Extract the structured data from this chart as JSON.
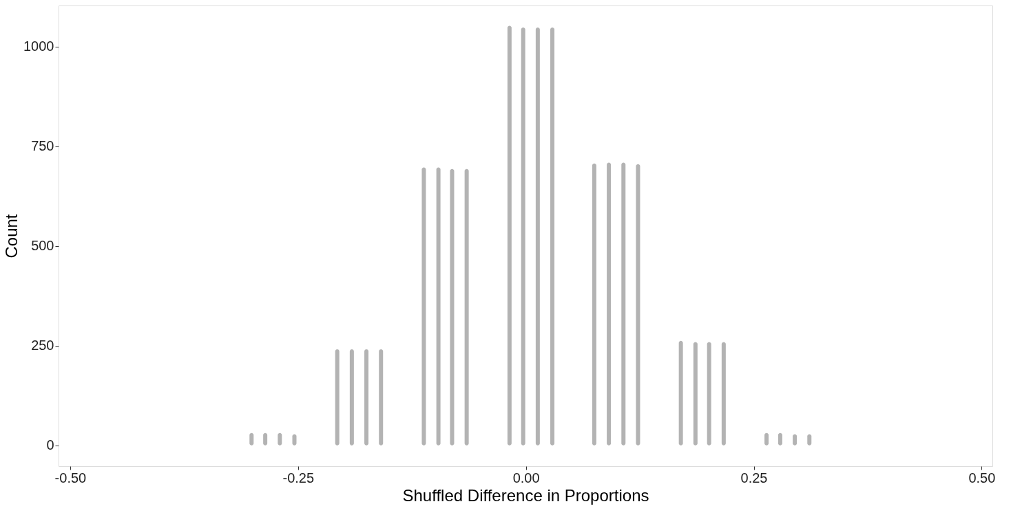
{
  "chart_data": {
    "type": "bar",
    "xlabel": "Shuffled Difference in Proportions",
    "ylabel": "Count",
    "x": [
      -0.301,
      -0.286,
      -0.27,
      -0.254,
      -0.207,
      -0.191,
      -0.175,
      -0.159,
      -0.112,
      -0.096,
      -0.081,
      -0.065,
      -0.018,
      -0.003,
      0.013,
      0.029,
      0.075,
      0.091,
      0.107,
      0.123,
      0.17,
      0.186,
      0.201,
      0.217,
      0.264,
      0.279,
      0.295,
      0.311
    ],
    "values": [
      31,
      31,
      31,
      28,
      241,
      241,
      241,
      241,
      697,
      697,
      693,
      693,
      1052,
      1048,
      1048,
      1048,
      707,
      709,
      709,
      705,
      262,
      259,
      259,
      259,
      31,
      31,
      28,
      28
    ],
    "color": "#b3b3b3",
    "xlim": [
      -0.509,
      0.508
    ],
    "xticks": [
      {
        "value": -0.5,
        "label": "-0.50"
      },
      {
        "value": -0.25,
        "label": "-0.25"
      },
      {
        "value": 0,
        "label": "0.00"
      },
      {
        "value": 0.25,
        "label": "0.25"
      },
      {
        "value": 0.5,
        "label": "0.50"
      }
    ],
    "ylim": [
      -52,
      1103
    ],
    "yticks": [
      0,
      250,
      500,
      750,
      1000
    ],
    "grid": false
  }
}
